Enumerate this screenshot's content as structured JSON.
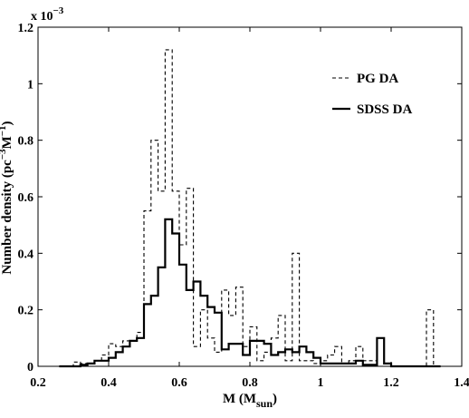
{
  "chart_data": {
    "type": "line",
    "step": true,
    "xlabel": "M (M",
    "xlabel_sub": "sun",
    "xlabel_close": ")",
    "ylabel": "Number density (pc",
    "ylabel_sup1": "−3",
    "ylabel_mid": "M",
    "ylabel_sup2": "−1",
    "ylabel_close": ")",
    "y_multiplier_base": "x 10",
    "y_multiplier_exp": "−3",
    "xlim": [
      0.2,
      1.4
    ],
    "ylim": [
      0,
      1.2
    ],
    "xticks": [
      "0.2",
      "0.4",
      "0.6",
      "0.8",
      "1",
      "1.2",
      "1.4"
    ],
    "yticks": [
      "0",
      "0.2",
      "0.4",
      "0.6",
      "0.8",
      "1",
      "1.2"
    ],
    "grid": false,
    "legend_position": "top-right",
    "bin_edges": [
      0.26,
      0.28,
      0.3,
      0.32,
      0.34,
      0.36,
      0.38,
      0.4,
      0.42,
      0.44,
      0.46,
      0.48,
      0.5,
      0.52,
      0.54,
      0.56,
      0.58,
      0.6,
      0.62,
      0.64,
      0.66,
      0.68,
      0.7,
      0.72,
      0.74,
      0.76,
      0.78,
      0.8,
      0.82,
      0.84,
      0.86,
      0.88,
      0.9,
      0.92,
      0.94,
      0.96,
      0.98,
      1.0,
      1.02,
      1.04,
      1.06,
      1.08,
      1.1,
      1.12,
      1.14,
      1.16,
      1.18,
      1.2,
      1.22,
      1.24,
      1.26,
      1.28,
      1.3,
      1.32,
      1.34
    ],
    "series": [
      {
        "name": "PG DA",
        "style": "dashed",
        "values": [
          0,
          0,
          0.015,
          0.01,
          0.01,
          0.02,
          0.04,
          0.08,
          0.07,
          0.09,
          0.09,
          0.12,
          0.55,
          0.8,
          0.62,
          1.12,
          0.62,
          0.43,
          0.63,
          0.07,
          0.2,
          0.1,
          0.05,
          0.27,
          0.18,
          0.28,
          0.07,
          0.14,
          0.02,
          0.05,
          0.1,
          0.18,
          0.02,
          0.4,
          0.02,
          0.02,
          0.01,
          0.02,
          0.04,
          0.07,
          0.01,
          0.02,
          0.07,
          0.02,
          0.02,
          0,
          0,
          0,
          0,
          0,
          0,
          0,
          0.2,
          0
        ]
      },
      {
        "name": "SDSS DA",
        "style": "solid",
        "values": [
          0,
          0,
          0,
          0.005,
          0.01,
          0.02,
          0.02,
          0.03,
          0.05,
          0.07,
          0.09,
          0.1,
          0.22,
          0.25,
          0.35,
          0.52,
          0.47,
          0.36,
          0.27,
          0.3,
          0.25,
          0.21,
          0.19,
          0.06,
          0.08,
          0.08,
          0.04,
          0.09,
          0.09,
          0.08,
          0.04,
          0.05,
          0.06,
          0.05,
          0.07,
          0.05,
          0.03,
          0.01,
          0.01,
          0.01,
          0.01,
          0.01,
          0.02,
          0.005,
          0.005,
          0.1,
          0.01,
          0,
          0,
          0,
          0,
          0,
          0,
          0
        ]
      }
    ]
  }
}
